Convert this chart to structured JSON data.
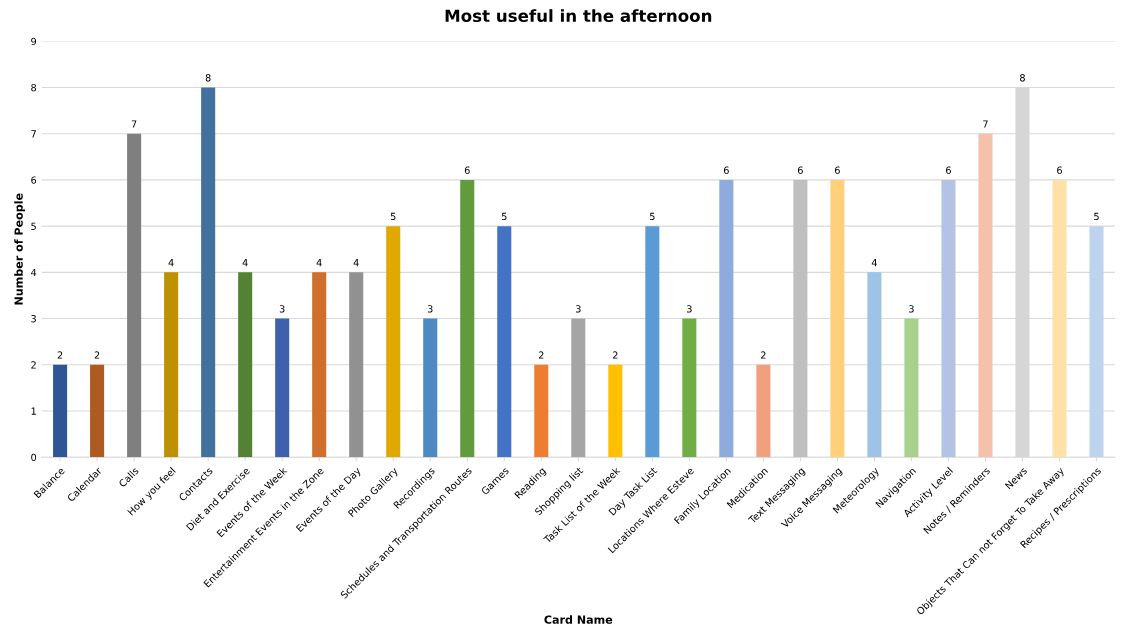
{
  "chart_data": {
    "type": "bar",
    "title": "Most useful in the afternoon",
    "xlabel": "Card Name",
    "ylabel": "Number of People",
    "categories": [
      "Balance",
      "Calendar",
      "Calls",
      "How you feel",
      "Contacts",
      "Diet and Exercise",
      "Events of the Week",
      "Entertainment Events in the Zone",
      "Events of the Day",
      "Photo Gallery",
      "Recordings",
      "Schedules and Transportation Routes",
      "Games",
      "Reading",
      "Shopping list",
      "Task List of the Week",
      "Day Task List",
      "Locations Where Esteve",
      "Family Location",
      "Medication",
      "Text Messaging",
      "Voice Messaging",
      "Meteorology",
      "Navigation",
      "Activity Level",
      "Notes / Reminders",
      "News",
      "Objects That Can not Forget To Take Away",
      "Recipes / Prescriptions"
    ],
    "values": [
      2,
      2,
      7,
      4,
      8,
      4,
      3,
      4,
      4,
      5,
      3,
      6,
      5,
      2,
      3,
      2,
      5,
      3,
      6,
      2,
      6,
      6,
      4,
      3,
      6,
      7,
      8,
      6,
      5
    ],
    "colors": [
      "#2f5597",
      "#ae5a21",
      "#7f7f7f",
      "#bf9000",
      "#41719c",
      "#548235",
      "#3f61ad",
      "#d06e2b",
      "#919191",
      "#e1a800",
      "#4e8ac2",
      "#629b3e",
      "#4472c4",
      "#ed7d31",
      "#a5a5a5",
      "#ffc000",
      "#5b9bd5",
      "#70ad47",
      "#8faadc",
      "#f1a07e",
      "#bfbfbf",
      "#ffd07a",
      "#9dc3e6",
      "#a9d18e",
      "#b4c2e6",
      "#f6c1ab",
      "#d6d6d6",
      "#ffe0a6",
      "#bdd3ee"
    ],
    "ylim": [
      0,
      9
    ],
    "yticks": [
      0,
      1,
      2,
      3,
      4,
      5,
      6,
      7,
      8,
      9
    ],
    "grid": "y",
    "data_labels": true
  }
}
